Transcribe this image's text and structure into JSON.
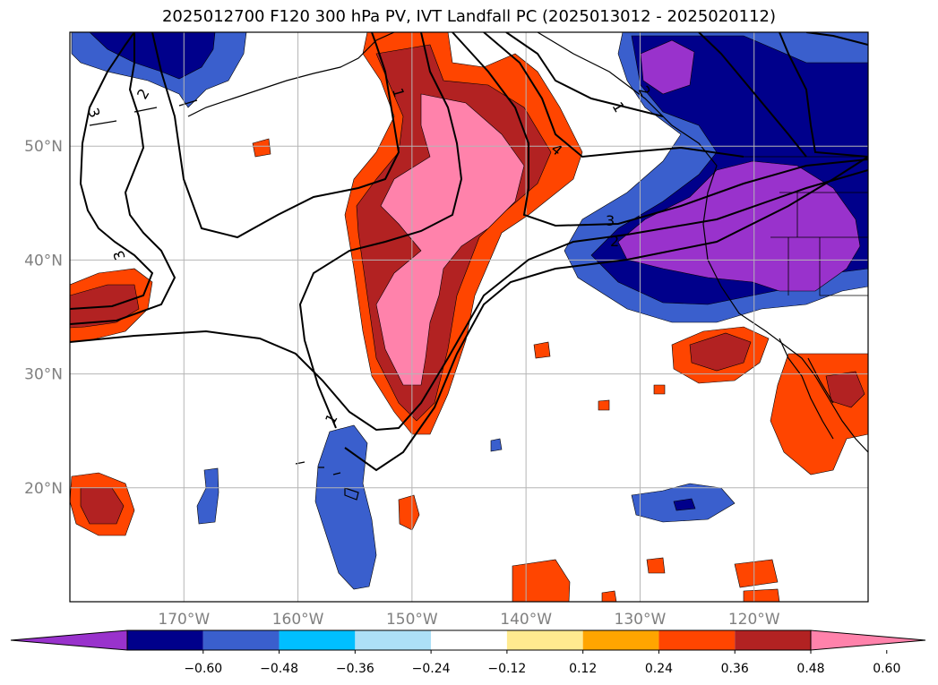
{
  "title": "2025012700 F120 300 hPa PV, IVT Landfall PC (2025013012 - 2025020112)",
  "map": {
    "extent": {
      "lon_min": -180,
      "lon_max": -110,
      "lat_min": 10,
      "lat_max": 60
    },
    "lon_labels": [
      "170°W",
      "160°W",
      "150°W",
      "140°W",
      "130°W",
      "120°W"
    ],
    "lon_ticks": [
      -170,
      -160,
      -150,
      -140,
      -130,
      -120
    ],
    "lat_labels": [
      "20°N",
      "30°N",
      "40°N",
      "50°N"
    ],
    "lat_ticks": [
      20,
      30,
      40,
      50
    ],
    "contour_labels": [
      "2",
      "3",
      "3",
      "1",
      "1",
      "4",
      "3",
      "2",
      "2",
      "1"
    ]
  },
  "colorbar": {
    "ticks": [
      "−0.60",
      "−0.48",
      "−0.36",
      "−0.24",
      "−0.12",
      "0.12",
      "0.24",
      "0.36",
      "0.48",
      "0.60"
    ],
    "colors": [
      "#9932CC",
      "#00008B",
      "#3A5FCD",
      "#00BFFF",
      "#ADE0F7",
      "#FFFFFF",
      "#FFEA8F",
      "#FFA500",
      "#FF4500",
      "#B22222",
      "#FF82AB"
    ]
  },
  "palette": {
    "pos1": "#FFA500",
    "pos2": "#FF4500",
    "pos3": "#B22222",
    "pos4": "#FF82AB",
    "neg1": "#00BFFF",
    "neg2": "#3A5FCD",
    "neg3": "#00008B",
    "neg4": "#9932CC"
  }
}
